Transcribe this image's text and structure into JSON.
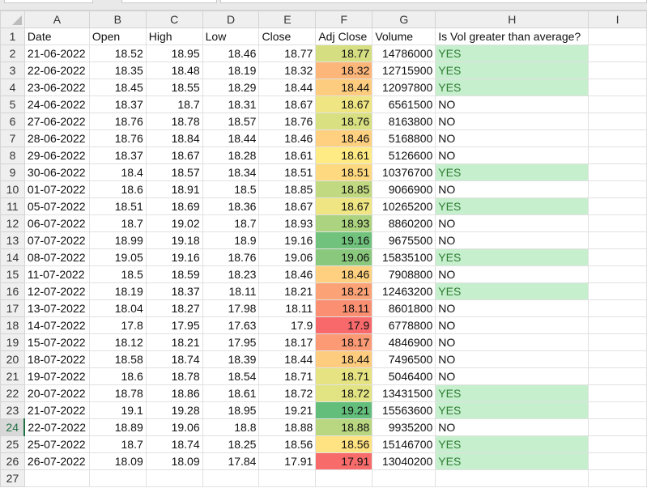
{
  "columns": [
    "A",
    "B",
    "C",
    "D",
    "E",
    "F",
    "G",
    "H",
    "I"
  ],
  "headers": [
    "Date",
    "Open",
    "High",
    "Low",
    "Close",
    "Adj Close",
    "Volume",
    "Is Vol greater than average?"
  ],
  "selected_row": 24,
  "color_scale": {
    "min": "#F8696B",
    "mid": "#FFEB84",
    "max": "#63BE7B"
  },
  "highlight": {
    "fill": "#C6EFCE",
    "text": "#2F7D32"
  },
  "rows": [
    [
      "21-06-2022",
      "18.52",
      "18.95",
      "18.46",
      "18.77",
      "18.77",
      "14786000",
      "YES"
    ],
    [
      "22-06-2022",
      "18.35",
      "18.48",
      "18.19",
      "18.32",
      "18.32",
      "12715900",
      "YES"
    ],
    [
      "23-06-2022",
      "18.45",
      "18.55",
      "18.29",
      "18.44",
      "18.44",
      "12097800",
      "YES"
    ],
    [
      "24-06-2022",
      "18.37",
      "18.7",
      "18.31",
      "18.67",
      "18.67",
      "6561500",
      "NO"
    ],
    [
      "27-06-2022",
      "18.76",
      "18.78",
      "18.57",
      "18.76",
      "18.76",
      "8163800",
      "NO"
    ],
    [
      "28-06-2022",
      "18.76",
      "18.84",
      "18.44",
      "18.46",
      "18.46",
      "5168800",
      "NO"
    ],
    [
      "29-06-2022",
      "18.37",
      "18.67",
      "18.28",
      "18.61",
      "18.61",
      "5126600",
      "NO"
    ],
    [
      "30-06-2022",
      "18.4",
      "18.57",
      "18.34",
      "18.51",
      "18.51",
      "10376700",
      "YES"
    ],
    [
      "01-07-2022",
      "18.6",
      "18.91",
      "18.5",
      "18.85",
      "18.85",
      "9066900",
      "NO"
    ],
    [
      "05-07-2022",
      "18.51",
      "18.69",
      "18.36",
      "18.67",
      "18.67",
      "10265200",
      "YES"
    ],
    [
      "06-07-2022",
      "18.7",
      "19.02",
      "18.7",
      "18.93",
      "18.93",
      "8860200",
      "NO"
    ],
    [
      "07-07-2022",
      "18.99",
      "19.18",
      "18.9",
      "19.16",
      "19.16",
      "9675500",
      "NO"
    ],
    [
      "08-07-2022",
      "19.05",
      "19.16",
      "18.76",
      "19.06",
      "19.06",
      "15835100",
      "YES"
    ],
    [
      "11-07-2022",
      "18.5",
      "18.59",
      "18.23",
      "18.46",
      "18.46",
      "7908800",
      "NO"
    ],
    [
      "12-07-2022",
      "18.19",
      "18.37",
      "18.11",
      "18.21",
      "18.21",
      "12463200",
      "YES"
    ],
    [
      "13-07-2022",
      "18.04",
      "18.27",
      "17.98",
      "18.11",
      "18.11",
      "8601800",
      "NO"
    ],
    [
      "14-07-2022",
      "17.8",
      "17.95",
      "17.63",
      "17.9",
      "17.9",
      "6778800",
      "NO"
    ],
    [
      "15-07-2022",
      "18.12",
      "18.21",
      "17.95",
      "18.17",
      "18.17",
      "4846900",
      "NO"
    ],
    [
      "18-07-2022",
      "18.58",
      "18.74",
      "18.39",
      "18.44",
      "18.44",
      "7496500",
      "NO"
    ],
    [
      "19-07-2022",
      "18.6",
      "18.78",
      "18.54",
      "18.71",
      "18.71",
      "5046400",
      "NO"
    ],
    [
      "20-07-2022",
      "18.78",
      "18.86",
      "18.61",
      "18.72",
      "18.72",
      "13431500",
      "YES"
    ],
    [
      "21-07-2022",
      "19.1",
      "19.28",
      "18.95",
      "19.21",
      "19.21",
      "15563600",
      "YES"
    ],
    [
      "22-07-2022",
      "18.89",
      "19.06",
      "18.8",
      "18.88",
      "18.88",
      "9935200",
      "NO"
    ],
    [
      "25-07-2022",
      "18.7",
      "18.74",
      "18.25",
      "18.56",
      "18.56",
      "15146700",
      "YES"
    ],
    [
      "26-07-2022",
      "18.09",
      "18.09",
      "17.84",
      "17.91",
      "17.91",
      "13040200",
      "YES"
    ]
  ]
}
